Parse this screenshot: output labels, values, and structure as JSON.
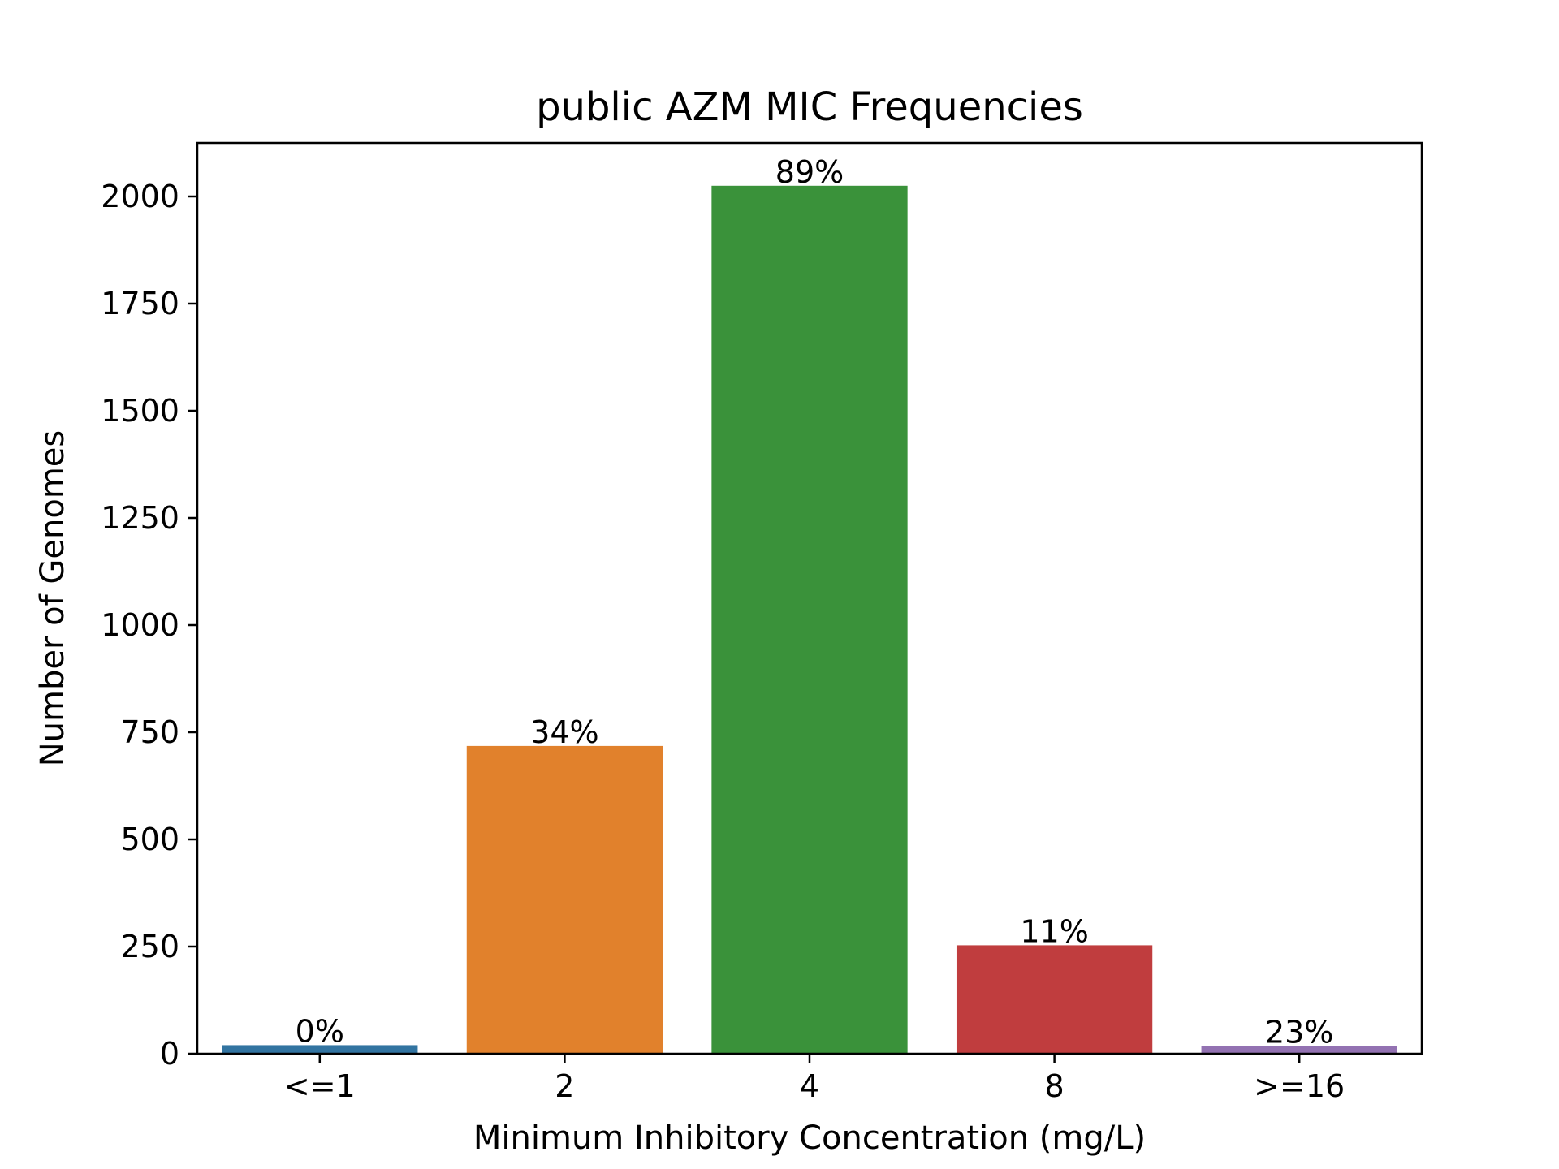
{
  "chart_data": {
    "type": "bar",
    "title": "public AZM MIC Frequencies",
    "xlabel": "Minimum Inhibitory Concentration (mg/L)",
    "ylabel": "Number of Genomes",
    "categories": [
      "<=1",
      "2",
      "4",
      "8",
      ">=16"
    ],
    "values": [
      20,
      718,
      2025,
      253,
      18
    ],
    "bar_labels": [
      "0%",
      "34%",
      "89%",
      "11%",
      "23%"
    ],
    "colors": [
      "#3274a1",
      "#e1812c",
      "#3a923a",
      "#c03d3e",
      "#9372b2"
    ],
    "ylim": [
      0,
      2125
    ],
    "yticks": [
      0,
      250,
      500,
      750,
      1000,
      1250,
      1500,
      1750,
      2000
    ],
    "grid": false
  }
}
